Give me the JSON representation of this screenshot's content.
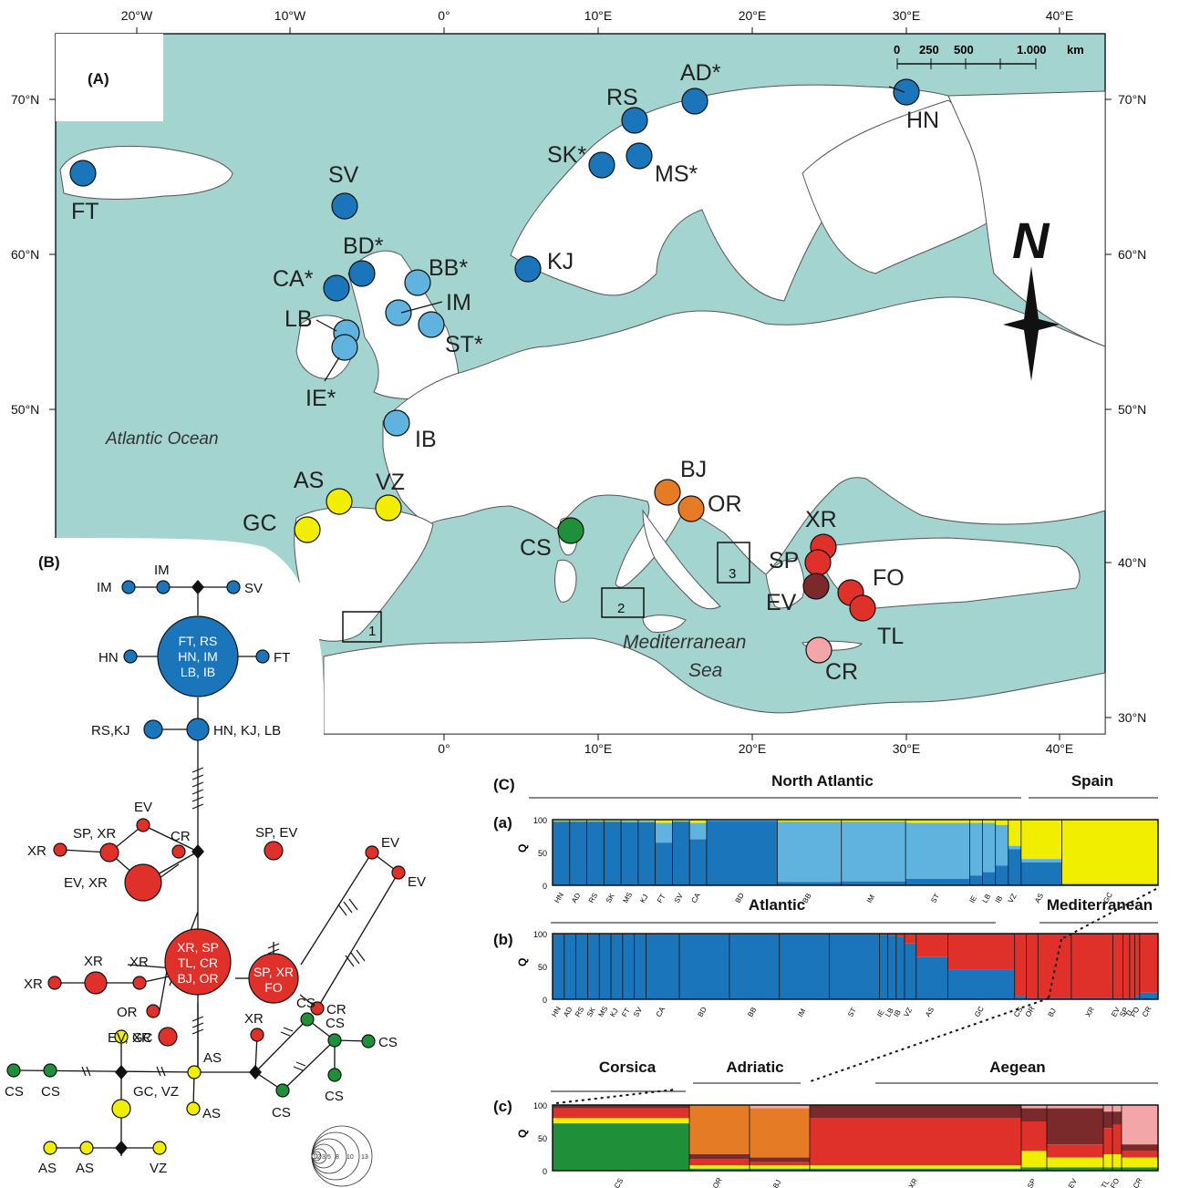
{
  "colors": {
    "sea": "#a4d4d0",
    "land": "#ffffff",
    "dark_blue": "#1b75bb",
    "light_blue": "#5fb3de",
    "yellow": "#f1ee00",
    "red": "#e0302a",
    "dark_red": "#7a2a2a",
    "pink": "#f3a6a8",
    "orange": "#e57b25",
    "green": "#1f8f3a"
  },
  "map": {
    "panel_label": "(A)",
    "top_ticks": [
      "20°W",
      "10°W",
      "0°",
      "10°E",
      "20°E",
      "30°E",
      "40°E"
    ],
    "bottom_ticks": [
      "0°",
      "10°E",
      "20°E",
      "30°E",
      "40°E"
    ],
    "left_ticks": [
      "70°N",
      "60°N",
      "50°N"
    ],
    "right_ticks": [
      "70°N",
      "60°N",
      "50°N",
      "40°N",
      "30°N"
    ],
    "scale": {
      "labels": [
        "0",
        "250",
        "500",
        "1.000"
      ],
      "unit": "km"
    },
    "north": "N",
    "labels": {
      "atlantic": "Atlantic Ocean",
      "med1": "Mediterranean",
      "med2": "Sea"
    },
    "boxes": [
      "1",
      "2",
      "3"
    ],
    "sites": [
      "FT",
      "SV",
      "BD*",
      "CA*",
      "BB*",
      "IM",
      "LB",
      "ST*",
      "IE*",
      "IB",
      "RS",
      "AD*",
      "SK*",
      "MS*",
      "KJ",
      "HN",
      "AS",
      "VZ",
      "GC",
      "BJ",
      "OR",
      "CS",
      "XR",
      "SP",
      "EV",
      "FO",
      "TL",
      "CR"
    ]
  },
  "network": {
    "panel_label": "(B)",
    "labels": {
      "im1": "IM",
      "im2": "IM",
      "sv": "SV",
      "hn": "HN",
      "ft": "FT",
      "big_blue": [
        "FT, RS",
        "HN, IM",
        "LB, IB"
      ],
      "rskj": "RS,KJ",
      "hnkjlb": "HN, KJ, LB",
      "ev1": "EV",
      "spxr1": "SP, XR",
      "cr1": "CR",
      "xr1": "XR",
      "evxr1": "EV, XR",
      "xr2": "XR",
      "xr3": "XR",
      "xr4": "XR",
      "big_red": [
        "XR, SP",
        "TL, CR",
        "BJ, OR"
      ],
      "or": "OR",
      "evxr2": "EV, XR",
      "spev": "SP, EV",
      "red2": [
        "SP, XR",
        "FO"
      ],
      "ev2": "EV",
      "ev3": "EV",
      "cr2": "CR",
      "gc": "GC",
      "gcvz": "GC, VZ",
      "as1": "AS",
      "as2": "AS",
      "as3": "AS",
      "as4": "AS",
      "vz": "VZ",
      "cs1": "CS",
      "cs2": "CS",
      "cs3": "CS",
      "cs4": "CS",
      "cs5": "CS",
      "cs6": "CS",
      "cs7": "CS",
      "xr5": "XR"
    },
    "legend_sizes": [
      "1",
      "2",
      "3",
      "5",
      "8",
      "10",
      "13"
    ]
  },
  "structure": {
    "panel_label": "(C)",
    "axis_label": "Q",
    "ticks": [
      "100",
      "50",
      "0"
    ],
    "a": {
      "label": "(a)",
      "headers": [
        "North Atlantic",
        "Spain"
      ],
      "populations": [
        "HN",
        "AD",
        "RS",
        "SK",
        "MS",
        "KJ",
        "FT",
        "SV",
        "CA",
        "BD",
        "BB",
        "IM",
        "ST",
        "IE",
        "LB",
        "IB",
        "VZ",
        "AS",
        "GC"
      ],
      "pop_q": [
        [
          0.97,
          0.01,
          0.02
        ],
        [
          0.97,
          0.01,
          0.02
        ],
        [
          0.97,
          0.01,
          0.02
        ],
        [
          0.97,
          0.01,
          0.02
        ],
        [
          0.96,
          0.02,
          0.02
        ],
        [
          0.96,
          0.02,
          0.02
        ],
        [
          0.65,
          0.3,
          0.05
        ],
        [
          0.97,
          0.01,
          0.02
        ],
        [
          0.7,
          0.25,
          0.05
        ],
        [
          0.98,
          0.01,
          0.01
        ],
        [
          0.05,
          0.92,
          0.03
        ],
        [
          0.06,
          0.91,
          0.03
        ],
        [
          0.1,
          0.85,
          0.05
        ],
        [
          0.15,
          0.8,
          0.05
        ],
        [
          0.2,
          0.75,
          0.05
        ],
        [
          0.3,
          0.62,
          0.08
        ],
        [
          0.55,
          0.05,
          0.4
        ],
        [
          0.35,
          0.05,
          0.6
        ],
        [
          0.02,
          0.0,
          0.98
        ]
      ]
    },
    "b": {
      "label": "(b)",
      "headers": [
        "Atlantic",
        "Mediterranean"
      ],
      "populations": [
        "HN",
        "AD",
        "RS",
        "SK",
        "MS",
        "KJ",
        "FT",
        "SV",
        "CA",
        "BD",
        "BB",
        "IM",
        "ST",
        "IE",
        "LB",
        "IB",
        "VZ",
        "AS",
        "GC",
        "CS",
        "OR",
        "BJ",
        "XR",
        "EV",
        "SP",
        "TL",
        "FO",
        "CR"
      ],
      "blue_q": [
        0.99,
        0.99,
        0.99,
        0.99,
        0.99,
        0.99,
        0.99,
        0.99,
        0.99,
        0.99,
        0.99,
        0.99,
        0.99,
        0.98,
        0.97,
        0.95,
        0.85,
        0.65,
        0.45,
        0.05,
        0.02,
        0.02,
        0.02,
        0.02,
        0.02,
        0.02,
        0.05,
        0.1
      ]
    },
    "c": {
      "label": "(c)",
      "headers": [
        "Corsica",
        "Adriatic",
        "Aegean"
      ],
      "populations": [
        "CS",
        "OR",
        "BJ",
        "XR",
        "SP",
        "EV",
        "TL",
        "FO",
        "CR"
      ],
      "pop_q": [
        {
          "green": 0.72,
          "yellow": 0.08,
          "red": 0.15,
          "darkred": 0.05,
          "orange": 0.0,
          "pink": 0.0
        },
        {
          "green": 0.03,
          "yellow": 0.05,
          "red": 0.1,
          "darkred": 0.07,
          "orange": 0.75,
          "pink": 0.0
        },
        {
          "green": 0.03,
          "yellow": 0.05,
          "red": 0.05,
          "darkred": 0.07,
          "orange": 0.75,
          "pink": 0.05
        },
        {
          "green": 0.03,
          "yellow": 0.05,
          "red": 0.72,
          "darkred": 0.2,
          "orange": 0.0,
          "pink": 0.0
        },
        {
          "green": 0.05,
          "yellow": 0.25,
          "red": 0.45,
          "darkred": 0.2,
          "orange": 0.0,
          "pink": 0.05
        },
        {
          "green": 0.05,
          "yellow": 0.15,
          "red": 0.2,
          "darkred": 0.55,
          "orange": 0.0,
          "pink": 0.05
        },
        {
          "green": 0.05,
          "yellow": 0.2,
          "red": 0.4,
          "darkred": 0.25,
          "orange": 0.0,
          "pink": 0.1
        },
        {
          "green": 0.05,
          "yellow": 0.2,
          "red": 0.45,
          "darkred": 0.2,
          "orange": 0.0,
          "pink": 0.1
        },
        {
          "green": 0.05,
          "yellow": 0.15,
          "red": 0.1,
          "darkred": 0.1,
          "orange": 0.0,
          "pink": 0.6
        }
      ]
    }
  }
}
